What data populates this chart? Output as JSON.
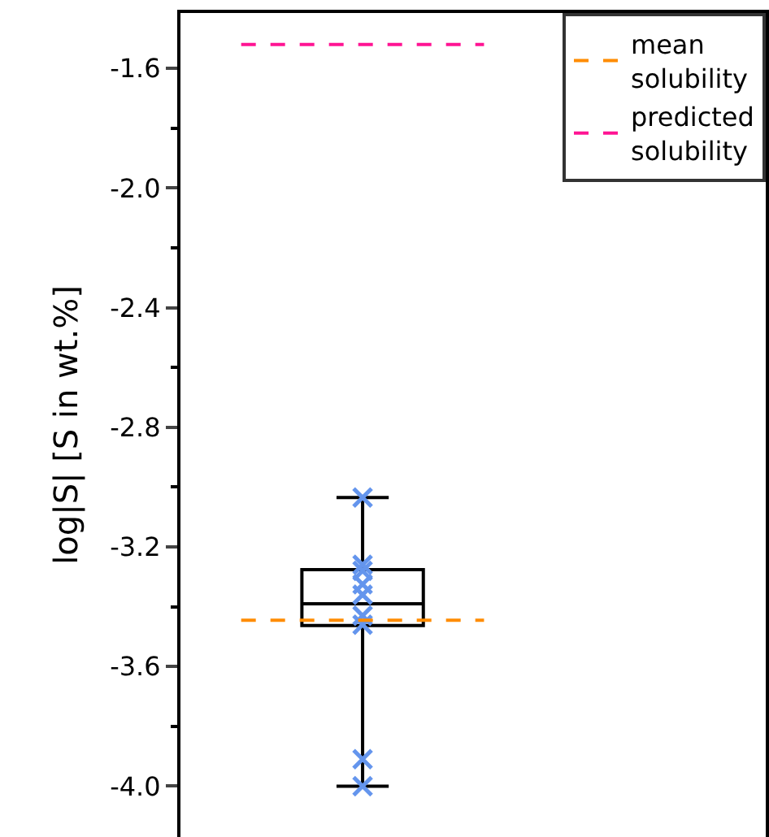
{
  "chart_data": {
    "type": "box",
    "categories": [
      null
    ],
    "ylabel": "log|S| [S in wt.%]",
    "ylim": [
      -4.17,
      -1.415
    ],
    "yticks": [
      -1.6,
      {
        "value": -2.0,
        "label": "-2.0"
      },
      -2.4,
      -2.8,
      -3.2,
      -3.6,
      {
        "value": -4.0,
        "label": "-4.0"
      }
    ],
    "tick_labels": "y",
    "legend": "top right",
    "boxes": [
      {
        "low": -4.0,
        "q1": -3.463,
        "median": -3.39,
        "q3": -3.276,
        "high": -3.035
      }
    ],
    "series": [
      {
        "type": "scatter",
        "color": "#6495ed",
        "marker": "cross",
        "x": [
          null,
          null,
          null,
          null,
          null,
          null,
          null,
          null,
          null
        ],
        "values": [
          -3.035,
          -3.26,
          -3.28,
          -3.325,
          -3.36,
          -3.43,
          -3.46,
          -3.91,
          -4.0
        ]
      }
    ],
    "ref_lines": [
      {
        "axis": "y",
        "value": -3.445,
        "label": "mean solubility",
        "color": "#ff8c00",
        "line_style": "dashed"
      },
      {
        "axis": "y",
        "value": -1.52,
        "label": "predicted solubility",
        "color": "#ff1493",
        "line_style": "dashed"
      }
    ]
  }
}
